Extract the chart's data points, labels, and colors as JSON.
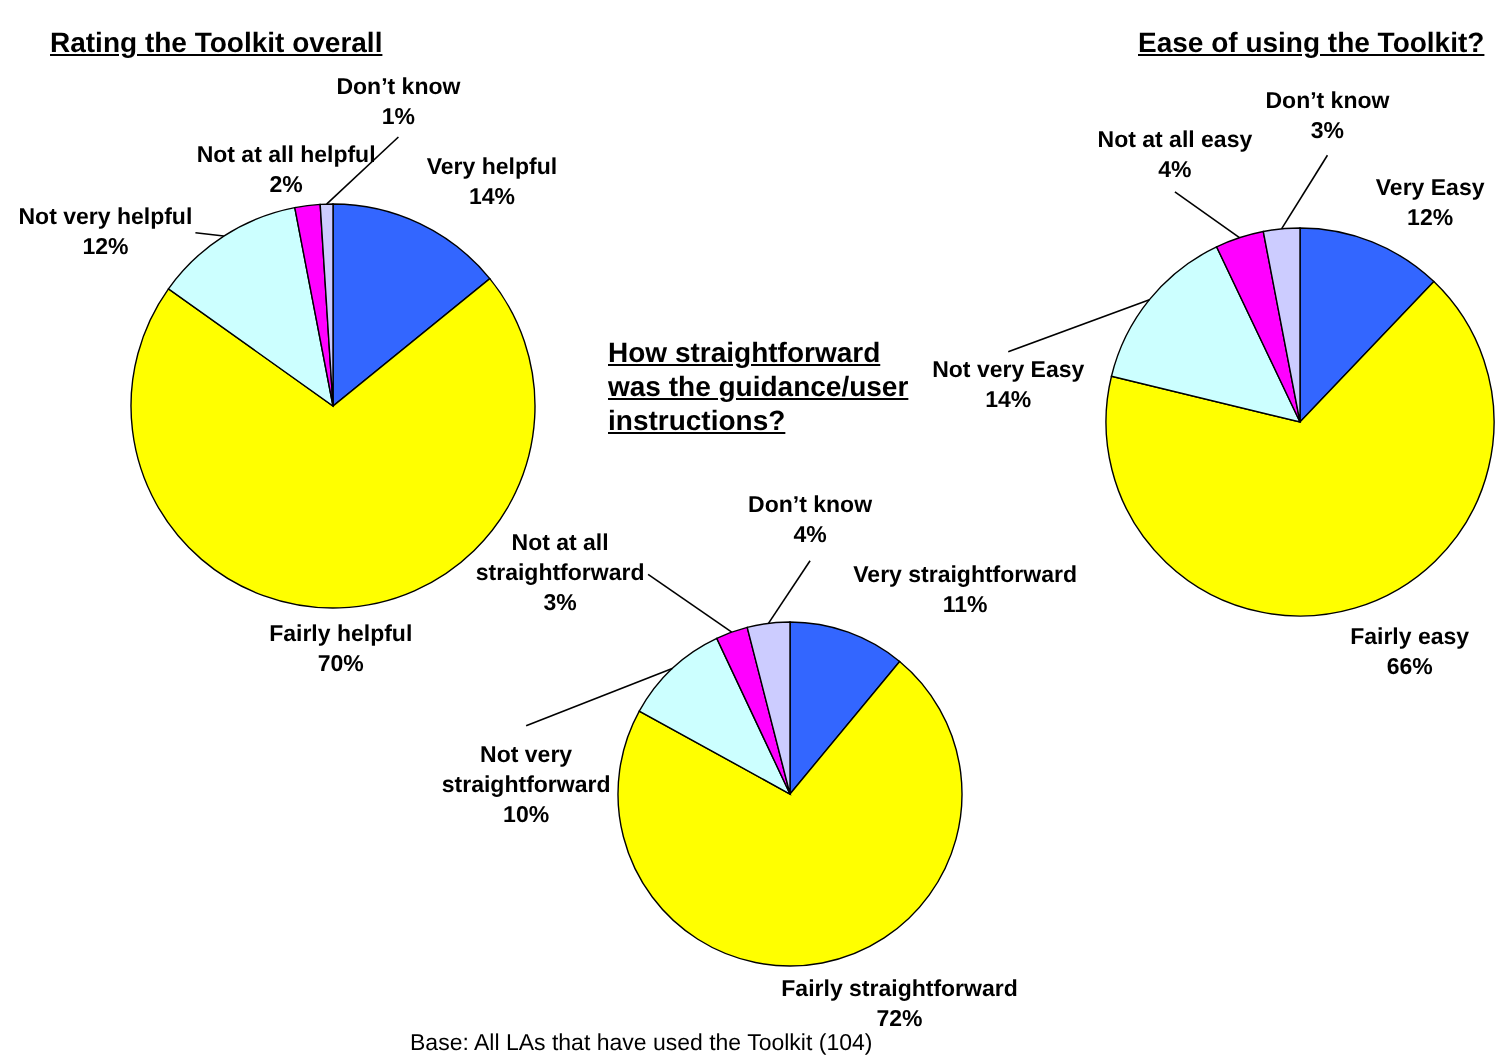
{
  "chart_data": [
    {
      "type": "pie",
      "title": "Rating the Toolkit overall",
      "categories": [
        "Very helpful",
        "Fairly helpful",
        "Not very helpful",
        "Not at all helpful",
        "Don’t know"
      ],
      "values": [
        14,
        70,
        12,
        2,
        1
      ],
      "value_labels": [
        "14%",
        "70%",
        "12%",
        "2%",
        "1%"
      ],
      "colors": [
        "#3366ff",
        "#ffff00",
        "#ccffff",
        "#ff00ff",
        "#ccccff"
      ]
    },
    {
      "type": "pie",
      "title": "How straightforward was the guidance/user instructions?",
      "categories": [
        "Very straightforward",
        "Fairly straightforward",
        "Not very straightforward",
        "Not at all straightforward",
        "Don’t know"
      ],
      "values": [
        11,
        72,
        10,
        3,
        4
      ],
      "value_labels": [
        "11%",
        "72%",
        "10%",
        "3%",
        "4%"
      ],
      "colors": [
        "#3366ff",
        "#ffff00",
        "#ccffff",
        "#ff00ff",
        "#ccccff"
      ],
      "annotations": [
        "Base: All LAs that have used the Toolkit (104)"
      ]
    },
    {
      "type": "pie",
      "title": "Ease of using the Toolkit?",
      "categories": [
        "Very Easy",
        "Fairly easy",
        "Not very Easy",
        "Not at all easy",
        "Don’t know"
      ],
      "values": [
        12,
        66,
        14,
        4,
        3
      ],
      "value_labels": [
        "12%",
        "66%",
        "14%",
        "4%",
        "3%"
      ],
      "colors": [
        "#3366ff",
        "#ffff00",
        "#ccffff",
        "#ff00ff",
        "#ccccff"
      ]
    }
  ]
}
